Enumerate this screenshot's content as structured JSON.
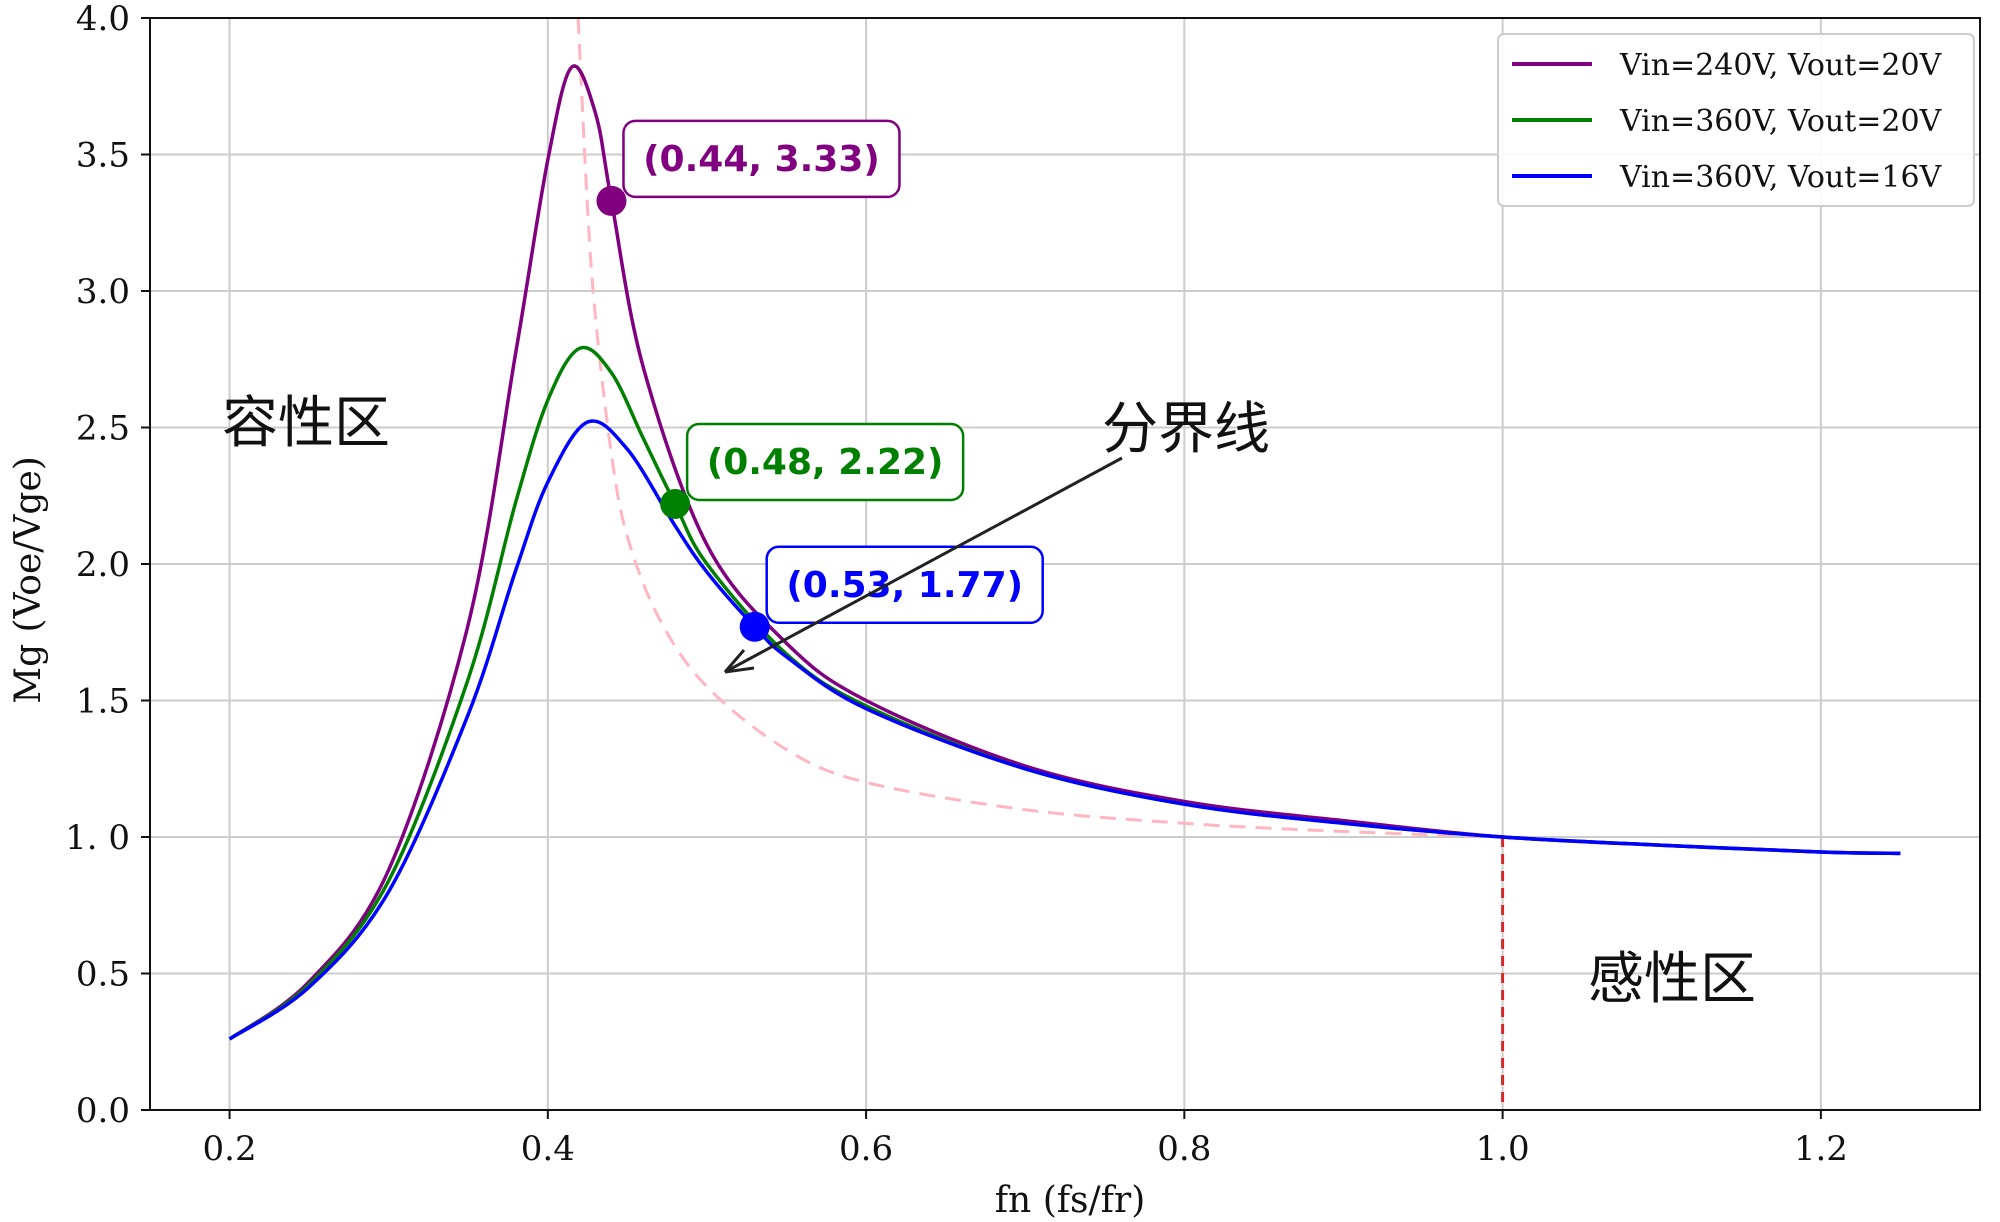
{
  "chart_data": {
    "type": "line",
    "title": "",
    "xlabel": "fn (fs/fr)",
    "ylabel": "Mg (Voe/Vge)",
    "xlim": [
      0.15,
      1.3
    ],
    "ylim": [
      0.0,
      4.0
    ],
    "x_ticks": [
      "0.2",
      "0.4",
      "0.6",
      "0.8",
      "1.0",
      "1.2"
    ],
    "y_ticks": [
      "0.0",
      "0.5",
      "1. 0",
      "1.5",
      "2.0",
      "2.5",
      "3.0",
      "3.5",
      "4.0"
    ],
    "grid": true,
    "legend_position": "top-right",
    "series": [
      {
        "name": "Vin=240V, Vout=20V",
        "color": "#800080",
        "x": [
          0.2,
          0.25,
          0.3,
          0.35,
          0.38,
          0.4,
          0.415,
          0.43,
          0.44,
          0.46,
          0.5,
          0.55,
          0.6,
          0.7,
          0.8,
          0.9,
          1.0,
          1.1,
          1.2,
          1.25
        ],
        "y": [
          0.26,
          0.47,
          0.88,
          1.78,
          2.78,
          3.48,
          3.82,
          3.65,
          3.33,
          2.72,
          2.07,
          1.71,
          1.5,
          1.26,
          1.13,
          1.06,
          1.0,
          0.97,
          0.945,
          0.94
        ]
      },
      {
        "name": "Vin=360V, Vout=20V",
        "color": "#008000",
        "x": [
          0.2,
          0.25,
          0.3,
          0.35,
          0.38,
          0.4,
          0.42,
          0.44,
          0.46,
          0.48,
          0.5,
          0.55,
          0.6,
          0.7,
          0.8,
          0.9,
          1.0,
          1.1,
          1.2,
          1.25
        ],
        "y": [
          0.26,
          0.46,
          0.84,
          1.58,
          2.23,
          2.6,
          2.79,
          2.7,
          2.46,
          2.22,
          2.0,
          1.67,
          1.48,
          1.25,
          1.12,
          1.05,
          1.0,
          0.97,
          0.945,
          0.94
        ]
      },
      {
        "name": "Vin=360V, Vout=16V",
        "color": "#0000ff",
        "x": [
          0.2,
          0.25,
          0.3,
          0.35,
          0.38,
          0.4,
          0.425,
          0.45,
          0.48,
          0.5,
          0.53,
          0.55,
          0.6,
          0.7,
          0.8,
          0.9,
          1.0,
          1.1,
          1.2,
          1.25
        ],
        "y": [
          0.26,
          0.45,
          0.8,
          1.45,
          1.98,
          2.3,
          2.52,
          2.42,
          2.14,
          1.97,
          1.77,
          1.66,
          1.47,
          1.25,
          1.12,
          1.05,
          1.0,
          0.97,
          0.945,
          0.94
        ]
      }
    ],
    "boundary_curve": {
      "color": "#ffb6c1",
      "x": [
        0.419,
        0.425,
        0.43,
        0.44,
        0.45,
        0.47,
        0.5,
        0.55,
        0.6,
        0.7,
        0.8,
        0.9,
        1.0
      ],
      "y": [
        4.0,
        3.3,
        2.9,
        2.4,
        2.1,
        1.8,
        1.55,
        1.32,
        1.2,
        1.1,
        1.05,
        1.02,
        1.0
      ]
    },
    "vertical_marker": {
      "x": 1.0,
      "y_from": 0.0,
      "y_to": 1.0,
      "color": "#d62728"
    },
    "annotations": [
      {
        "x": 0.44,
        "y": 3.33,
        "label": "(0.44, 3.33)",
        "color": "#800080"
      },
      {
        "x": 0.48,
        "y": 2.22,
        "label": "(0.48, 2.22)",
        "color": "#008000"
      },
      {
        "x": 0.53,
        "y": 1.77,
        "label": "(0.53, 1.77)",
        "color": "#0000ff"
      }
    ],
    "region_labels": {
      "capacitive": "容性区",
      "inductive": "感性区",
      "boundary": "分界线"
    }
  }
}
